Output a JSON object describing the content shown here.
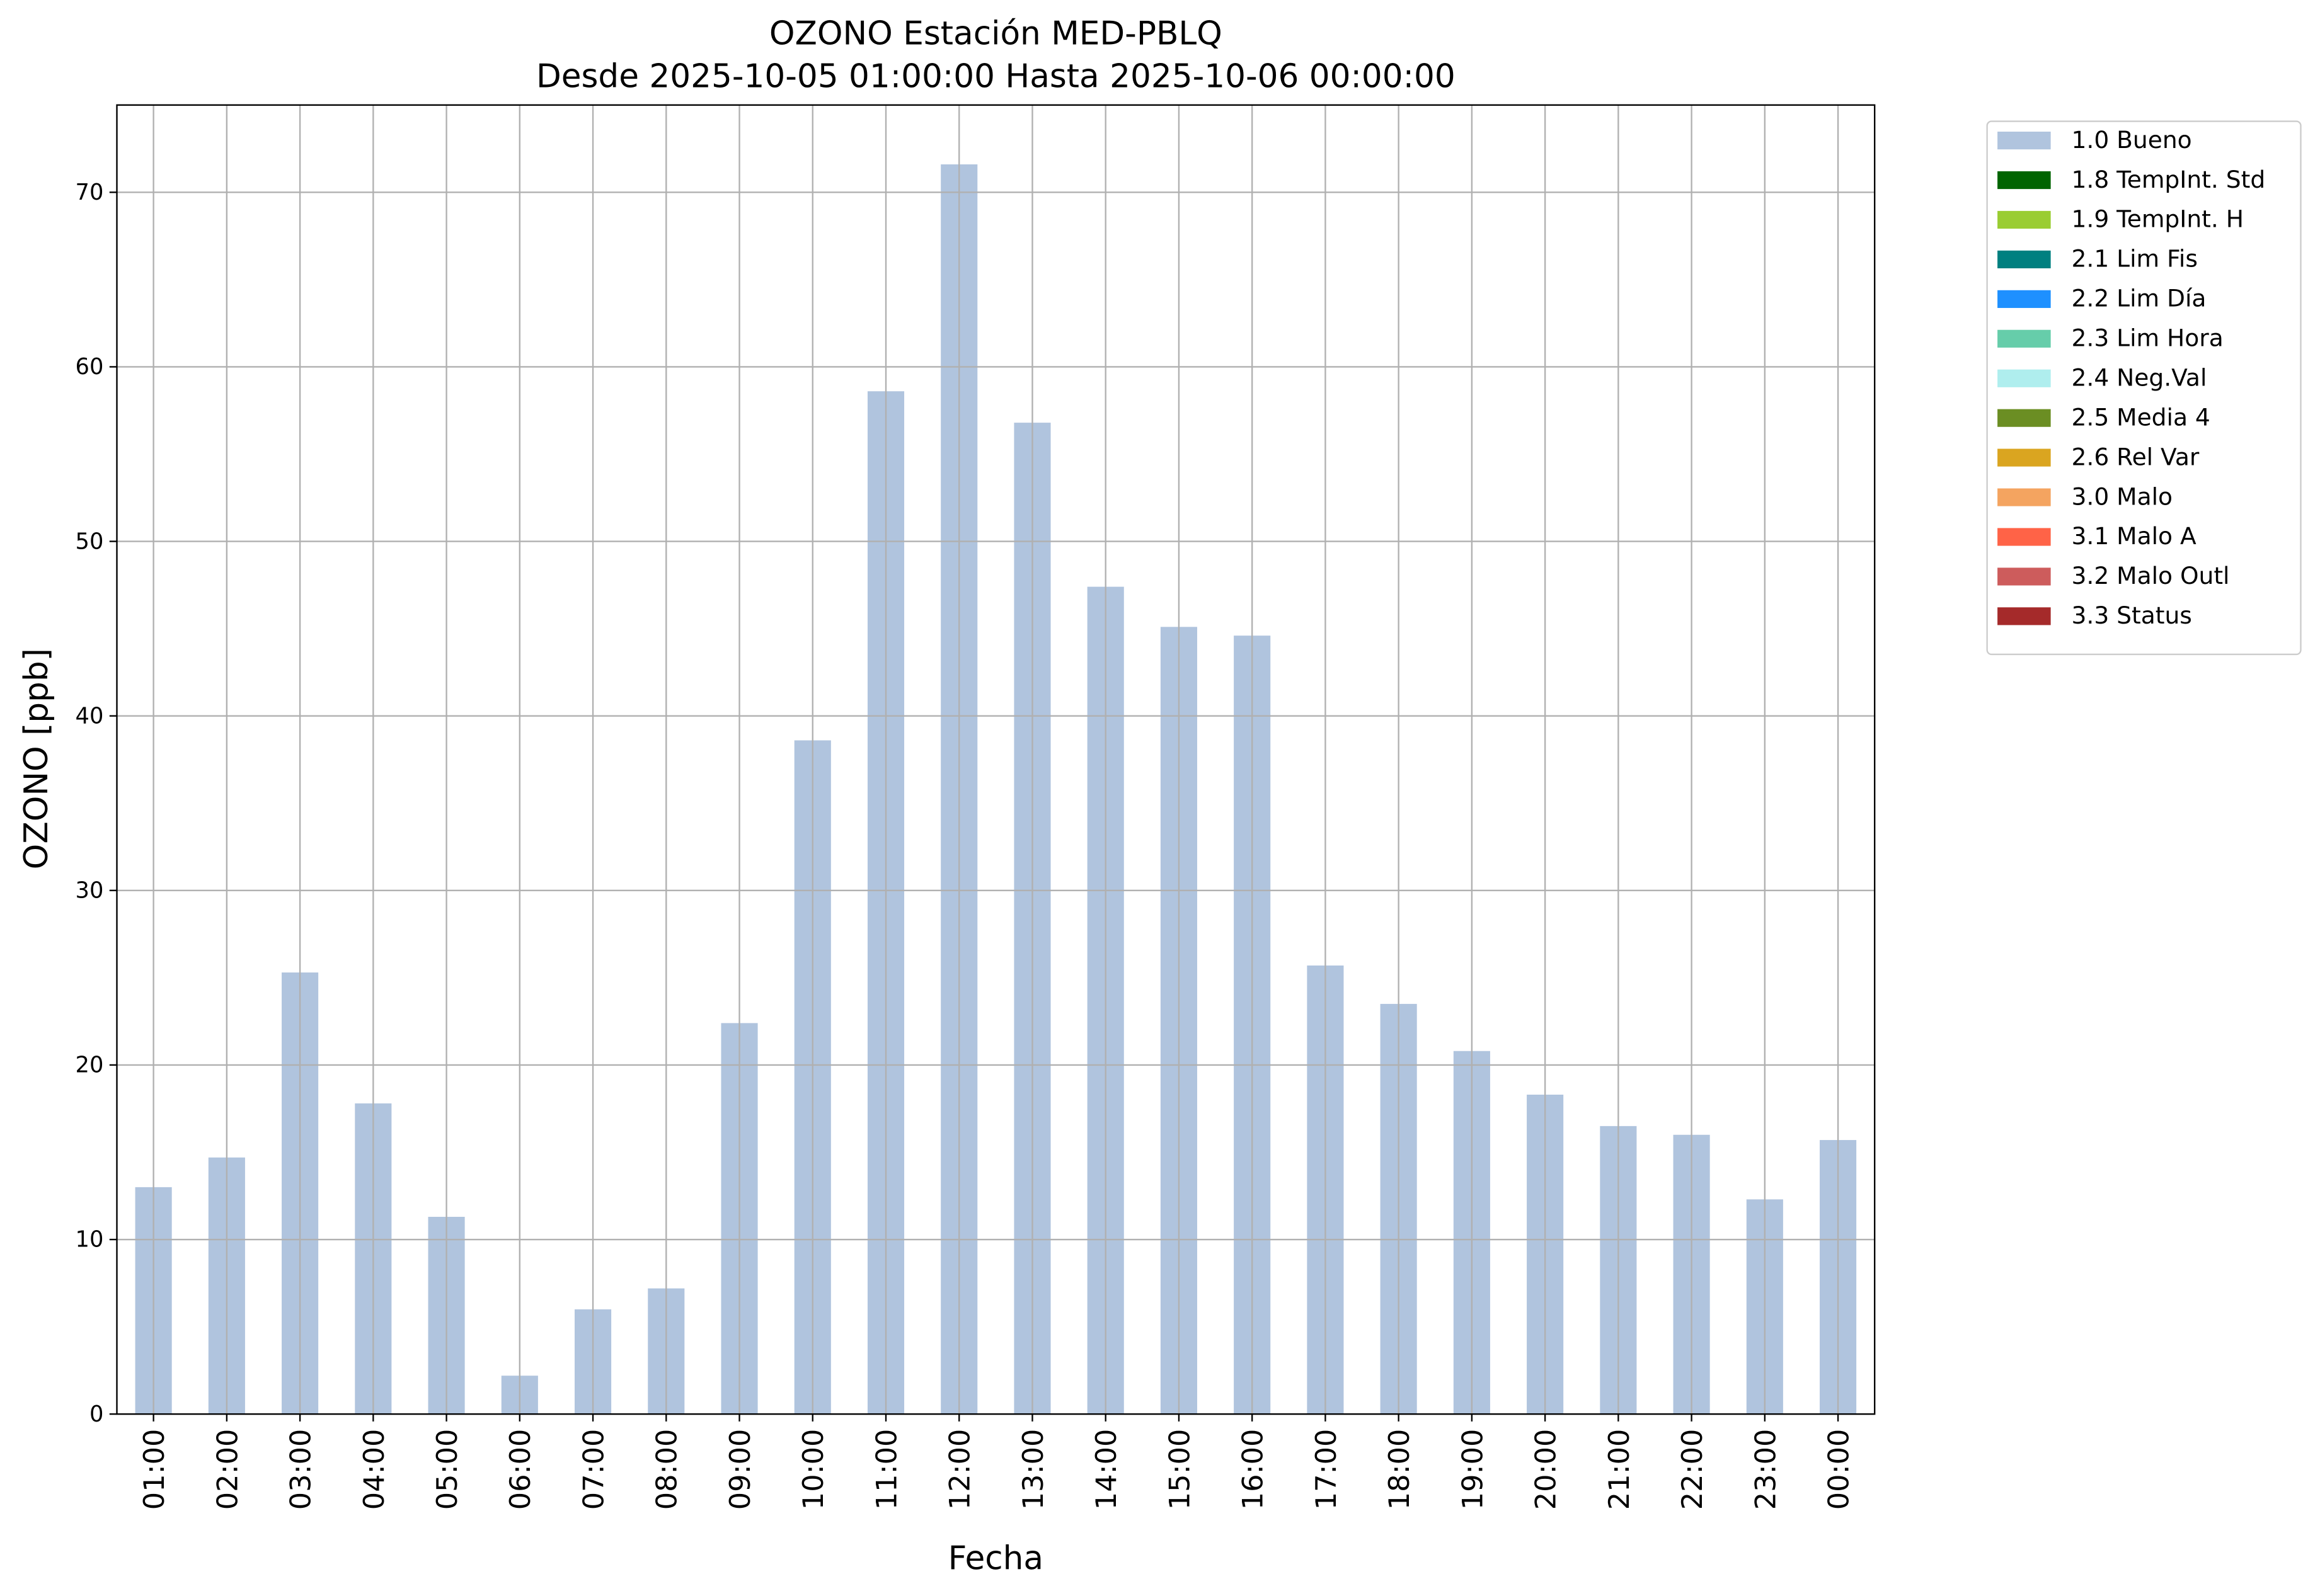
{
  "chart_data": {
    "type": "bar",
    "title": "OZONO Estación MED-PBLQ",
    "subtitle": "Desde 2025-10-05 01:00:00 Hasta 2025-10-06 00:00:00",
    "x_label": "Fecha",
    "y_label": "OZONO [ppb]",
    "categories": [
      "01:00",
      "02:00",
      "03:00",
      "04:00",
      "05:00",
      "06:00",
      "07:00",
      "08:00",
      "09:00",
      "10:00",
      "11:00",
      "12:00",
      "13:00",
      "14:00",
      "15:00",
      "16:00",
      "17:00",
      "18:00",
      "19:00",
      "20:00",
      "21:00",
      "22:00",
      "23:00",
      "00:00"
    ],
    "series": [
      {
        "name": "1.0 Bueno",
        "color": "#b0c4de",
        "values": [
          13.0,
          14.7,
          25.3,
          17.8,
          11.3,
          2.2,
          6.0,
          7.2,
          22.4,
          38.6,
          58.6,
          71.6,
          56.8,
          47.4,
          45.1,
          44.6,
          25.7,
          23.5,
          20.8,
          18.3,
          16.5,
          16.0,
          12.3,
          15.7
        ]
      },
      {
        "name": "1.8 TempInt. Std",
        "color": "#006400",
        "values": [
          null,
          null,
          null,
          null,
          null,
          null,
          null,
          null,
          null,
          null,
          null,
          null,
          null,
          null,
          null,
          null,
          null,
          null,
          null,
          null,
          null,
          null,
          null,
          null
        ]
      },
      {
        "name": "1.9 TempInt. H",
        "color": "#9acd32",
        "values": [
          null,
          null,
          null,
          null,
          null,
          null,
          null,
          null,
          null,
          null,
          null,
          null,
          null,
          null,
          null,
          null,
          null,
          null,
          null,
          null,
          null,
          null,
          null,
          null
        ]
      },
      {
        "name": "2.1 Lim Fis",
        "color": "#008080",
        "values": [
          null,
          null,
          null,
          null,
          null,
          null,
          null,
          null,
          null,
          null,
          null,
          null,
          null,
          null,
          null,
          null,
          null,
          null,
          null,
          null,
          null,
          null,
          null,
          null
        ]
      },
      {
        "name": "2.2 Lim Día",
        "color": "#1e90ff",
        "values": [
          null,
          null,
          null,
          null,
          null,
          null,
          null,
          null,
          null,
          null,
          null,
          null,
          null,
          null,
          null,
          null,
          null,
          null,
          null,
          null,
          null,
          null,
          null,
          null
        ]
      },
      {
        "name": "2.3 Lim Hora",
        "color": "#66cdaa",
        "values": [
          null,
          null,
          null,
          null,
          null,
          null,
          null,
          null,
          null,
          null,
          null,
          null,
          null,
          null,
          null,
          null,
          null,
          null,
          null,
          null,
          null,
          null,
          null,
          null
        ]
      },
      {
        "name": "2.4 Neg.Val",
        "color": "#afeeee",
        "values": [
          null,
          null,
          null,
          null,
          null,
          null,
          null,
          null,
          null,
          null,
          null,
          null,
          null,
          null,
          null,
          null,
          null,
          null,
          null,
          null,
          null,
          null,
          null,
          null
        ]
      },
      {
        "name": "2.5 Media 4",
        "color": "#6b8e23",
        "values": [
          null,
          null,
          null,
          null,
          null,
          null,
          null,
          null,
          null,
          null,
          null,
          null,
          null,
          null,
          null,
          null,
          null,
          null,
          null,
          null,
          null,
          null,
          null,
          null
        ]
      },
      {
        "name": "2.6 Rel Var",
        "color": "#daa520",
        "values": [
          null,
          null,
          null,
          null,
          null,
          null,
          null,
          null,
          null,
          null,
          null,
          null,
          null,
          null,
          null,
          null,
          null,
          null,
          null,
          null,
          null,
          null,
          null,
          null
        ]
      },
      {
        "name": "3.0 Malo",
        "color": "#f4a460",
        "values": [
          null,
          null,
          null,
          null,
          null,
          null,
          null,
          null,
          null,
          null,
          null,
          null,
          null,
          null,
          null,
          null,
          null,
          null,
          null,
          null,
          null,
          null,
          null,
          null
        ]
      },
      {
        "name": "3.1 Malo A",
        "color": "#ff6347",
        "values": [
          null,
          null,
          null,
          null,
          null,
          null,
          null,
          null,
          null,
          null,
          null,
          null,
          null,
          null,
          null,
          null,
          null,
          null,
          null,
          null,
          null,
          null,
          null,
          null
        ]
      },
      {
        "name": "3.2 Malo Outl",
        "color": "#cd5c5c",
        "values": [
          null,
          null,
          null,
          null,
          null,
          null,
          null,
          null,
          null,
          null,
          null,
          null,
          null,
          null,
          null,
          null,
          null,
          null,
          null,
          null,
          null,
          null,
          null,
          null
        ]
      },
      {
        "name": "3.3 Status",
        "color": "#a52a2a",
        "values": [
          null,
          null,
          null,
          null,
          null,
          null,
          null,
          null,
          null,
          null,
          null,
          null,
          null,
          null,
          null,
          null,
          null,
          null,
          null,
          null,
          null,
          null,
          null,
          null
        ]
      }
    ],
    "ylim": [
      0,
      75
    ],
    "yticks": [
      0,
      10,
      20,
      30,
      40,
      50,
      60,
      70
    ],
    "grid": true,
    "stacked": true,
    "legend": "outside upper right"
  }
}
